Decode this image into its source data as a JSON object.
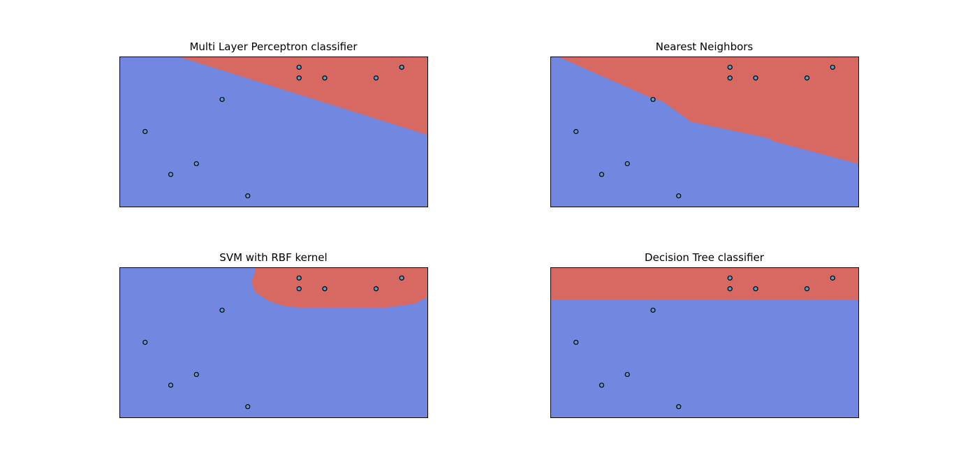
{
  "colors": {
    "class_0": "#7287e0",
    "class_1": "#d86862",
    "point_fill": "#5a9bc8",
    "point_edge": "#000000",
    "axes_edge": "#000000"
  },
  "chart_data": [
    {
      "type": "scatter",
      "title": "Multi Layer Perceptron classifier",
      "xlim": [
        0,
        12
      ],
      "ylim": [
        0,
        7
      ],
      "points": [
        {
          "x": 1,
          "y": 3.5
        },
        {
          "x": 2,
          "y": 1.5
        },
        {
          "x": 3,
          "y": 2
        },
        {
          "x": 4,
          "y": 5
        },
        {
          "x": 5,
          "y": 0.5
        },
        {
          "x": 7,
          "y": 6
        },
        {
          "x": 7,
          "y": 6.5
        },
        {
          "x": 8,
          "y": 6
        },
        {
          "x": 10,
          "y": 6
        },
        {
          "x": 11,
          "y": 6.5
        }
      ],
      "class_1_region": [
        [
          2.3,
          7
        ],
        [
          12,
          7
        ],
        [
          12,
          3.35
        ]
      ]
    },
    {
      "type": "scatter",
      "title": "Nearest Neighbors",
      "xlim": [
        0,
        12
      ],
      "ylim": [
        0,
        7
      ],
      "points": [
        {
          "x": 1,
          "y": 3.5
        },
        {
          "x": 2,
          "y": 1.5
        },
        {
          "x": 3,
          "y": 2
        },
        {
          "x": 4,
          "y": 5
        },
        {
          "x": 5,
          "y": 0.5
        },
        {
          "x": 7,
          "y": 6
        },
        {
          "x": 7,
          "y": 6.5
        },
        {
          "x": 8,
          "y": 6
        },
        {
          "x": 10,
          "y": 6
        },
        {
          "x": 11,
          "y": 6.5
        }
      ],
      "class_1_region": [
        [
          0.3,
          7
        ],
        [
          12,
          7
        ],
        [
          12,
          2
        ],
        [
          8.7,
          3.05
        ],
        [
          8.5,
          3.2
        ],
        [
          5.5,
          3.95
        ],
        [
          4.4,
          4.9
        ],
        [
          3.8,
          5.15
        ]
      ]
    },
    {
      "type": "scatter",
      "title": "SVM with RBF kernel",
      "xlim": [
        0,
        12
      ],
      "ylim": [
        0,
        7
      ],
      "points": [
        {
          "x": 1,
          "y": 3.5
        },
        {
          "x": 2,
          "y": 1.5
        },
        {
          "x": 3,
          "y": 2
        },
        {
          "x": 4,
          "y": 5
        },
        {
          "x": 5,
          "y": 0.5
        },
        {
          "x": 7,
          "y": 6
        },
        {
          "x": 7,
          "y": 6.5
        },
        {
          "x": 8,
          "y": 6
        },
        {
          "x": 10,
          "y": 6
        },
        {
          "x": 11,
          "y": 6.5
        }
      ],
      "class_1_region": [
        [
          5.3,
          7
        ],
        [
          12,
          7
        ],
        [
          12,
          5.6
        ],
        [
          11.5,
          5.3
        ],
        [
          10.4,
          5.12
        ],
        [
          7.0,
          5.12
        ],
        [
          6.4,
          5.2
        ],
        [
          5.8,
          5.45
        ],
        [
          5.3,
          5.85
        ],
        [
          5.15,
          6.3
        ],
        [
          5.3,
          6.8
        ]
      ]
    },
    {
      "type": "scatter",
      "title": "Decision Tree classifier",
      "xlim": [
        0,
        12
      ],
      "ylim": [
        0,
        7
      ],
      "points": [
        {
          "x": 1,
          "y": 3.5
        },
        {
          "x": 2,
          "y": 1.5
        },
        {
          "x": 3,
          "y": 2
        },
        {
          "x": 4,
          "y": 5
        },
        {
          "x": 5,
          "y": 0.5
        },
        {
          "x": 7,
          "y": 6
        },
        {
          "x": 7,
          "y": 6.5
        },
        {
          "x": 8,
          "y": 6
        },
        {
          "x": 10,
          "y": 6
        },
        {
          "x": 11,
          "y": 6.5
        }
      ],
      "class_1_region": [
        [
          0,
          7
        ],
        [
          12,
          7
        ],
        [
          12,
          5.5
        ],
        [
          0,
          5.5
        ]
      ]
    }
  ]
}
